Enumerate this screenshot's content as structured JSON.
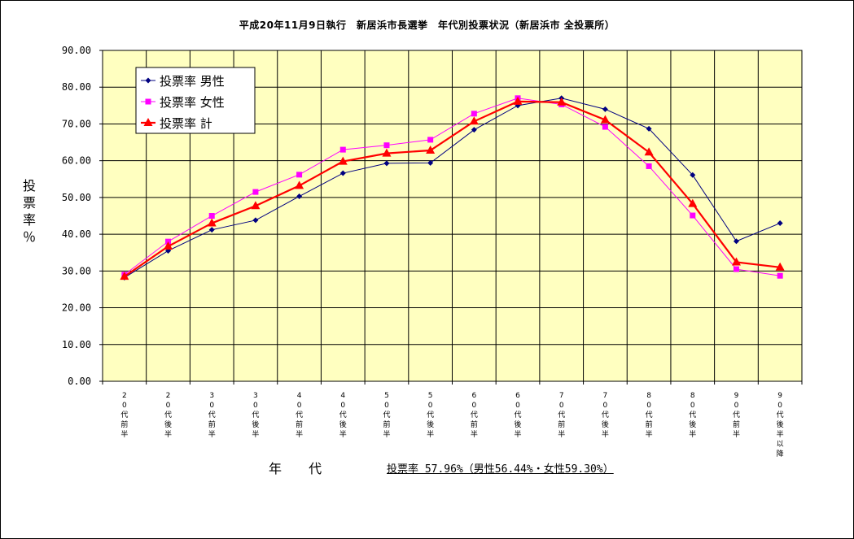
{
  "chart_data": {
    "type": "line",
    "title": "平成20年11月9日執行　新居浜市長選挙　年代別投票状況（新居浜市 全投票所）",
    "xlabel": "年 代",
    "ylabel": "投票率％",
    "ylim": [
      0,
      90
    ],
    "yticks": [
      "0.00",
      "10.00",
      "20.00",
      "30.00",
      "40.00",
      "50.00",
      "60.00",
      "70.00",
      "80.00",
      "90.00"
    ],
    "categories": [
      "20代前半",
      "20代後半",
      "30代前半",
      "30代後半",
      "40代前半",
      "40代後半",
      "50代前半",
      "50代後半",
      "60代前半",
      "60代後半",
      "70代前半",
      "70代後半",
      "80代前半",
      "80代後半",
      "90代前半",
      "90代後半以降"
    ],
    "category_glyphs": [
      [
        "2",
        "0",
        "代",
        "前",
        "半"
      ],
      [
        "2",
        "0",
        "代",
        "後",
        "半"
      ],
      [
        "3",
        "0",
        "代",
        "前",
        "半"
      ],
      [
        "3",
        "0",
        "代",
        "後",
        "半"
      ],
      [
        "4",
        "0",
        "代",
        "前",
        "半"
      ],
      [
        "4",
        "0",
        "代",
        "後",
        "半"
      ],
      [
        "5",
        "0",
        "代",
        "前",
        "半"
      ],
      [
        "5",
        "0",
        "代",
        "後",
        "半"
      ],
      [
        "6",
        "0",
        "代",
        "前",
        "半"
      ],
      [
        "6",
        "0",
        "代",
        "後",
        "半"
      ],
      [
        "7",
        "0",
        "代",
        "前",
        "半"
      ],
      [
        "7",
        "0",
        "代",
        "後",
        "半"
      ],
      [
        "8",
        "0",
        "代",
        "前",
        "半"
      ],
      [
        "8",
        "0",
        "代",
        "後",
        "半"
      ],
      [
        "9",
        "0",
        "代",
        "前",
        "半"
      ],
      [
        "9",
        "0",
        "代",
        "後",
        "半",
        "以",
        "降"
      ]
    ],
    "series": [
      {
        "name": "投票率 男性",
        "color": "#000080",
        "marker": "diamond",
        "values": [
          28.2,
          35.5,
          41.2,
          43.8,
          50.3,
          56.6,
          59.3,
          59.4,
          68.4,
          75.0,
          77.0,
          74.0,
          68.7,
          56.1,
          38.1,
          43.0
        ]
      },
      {
        "name": "投票率 女性",
        "color": "#ff00ff",
        "marker": "square",
        "values": [
          29.0,
          38.0,
          45.0,
          51.5,
          56.2,
          63.0,
          64.2,
          65.7,
          72.8,
          77.0,
          75.3,
          69.2,
          58.5,
          45.1,
          30.5,
          28.7
        ]
      },
      {
        "name": "投票率 計",
        "color": "#ff0000",
        "marker": "triangle",
        "values": [
          28.5,
          36.7,
          43.0,
          47.7,
          53.2,
          59.8,
          62.0,
          62.8,
          70.7,
          76.1,
          75.9,
          71.1,
          62.3,
          48.3,
          32.4,
          31.0
        ]
      }
    ],
    "grid": true,
    "legend_position": "top-left",
    "plot_background": "#ffffc0"
  },
  "summary": "投票率 57.96%（男性56.44%・女性59.30%）"
}
